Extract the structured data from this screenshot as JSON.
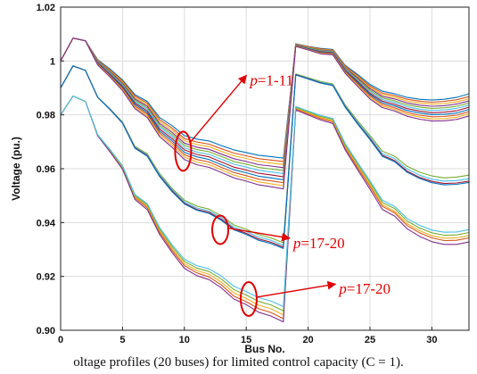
{
  "caption": "oltage profiles (20 buses) for limited control capacity (C = 1).",
  "chart_data": {
    "type": "line",
    "xlabel": "Bus No.",
    "ylabel": "Voltage (pu.)",
    "xlim": [
      0,
      33
    ],
    "ylim": [
      0.9,
      1.02
    ],
    "xticks": [
      0,
      5,
      10,
      15,
      20,
      25,
      30
    ],
    "yticks": [
      0.9,
      0.92,
      0.94,
      0.96,
      0.98,
      1,
      1.02
    ],
    "grid": true,
    "x": [
      0,
      1,
      2,
      3,
      4,
      5,
      6,
      7,
      8,
      9,
      10,
      11,
      12,
      13,
      14,
      15,
      16,
      17,
      18,
      19,
      20,
      21,
      22,
      23,
      24,
      25,
      26,
      27,
      28,
      29,
      30,
      31,
      32,
      33
    ],
    "series": [
      {
        "color": "#0072bd",
        "values": [
          1,
          1.0085,
          1.0075,
          1.0005,
          0.997,
          0.993,
          0.9875,
          0.985,
          0.979,
          0.976,
          0.9723,
          0.971,
          0.9703,
          0.9686,
          0.967,
          0.966,
          0.965,
          0.9645,
          0.9639,
          1.0064,
          1.0054,
          1.0047,
          1.0043,
          0.9984,
          0.995,
          0.9913,
          0.9888,
          0.9878,
          0.9865,
          0.9858,
          0.9855,
          0.9858,
          0.9865,
          0.9878
        ]
      },
      {
        "color": "#d95319",
        "values": [
          1,
          1.0085,
          1.0075,
          1.0003,
          0.9966,
          0.9926,
          0.987,
          0.9844,
          0.9782,
          0.9751,
          0.9712,
          0.9699,
          0.9691,
          0.9674,
          0.9658,
          0.9648,
          0.9637,
          0.9632,
          0.9627,
          1.0063,
          1.0053,
          1.0045,
          1.0041,
          0.9981,
          0.9945,
          0.9907,
          0.9881,
          0.9871,
          0.9858,
          0.9851,
          0.9847,
          0.985,
          0.9856,
          0.9868
        ]
      },
      {
        "color": "#edb120",
        "values": [
          1,
          1.0085,
          1.0075,
          1.0001,
          0.9963,
          0.9922,
          0.9864,
          0.9838,
          0.9775,
          0.9743,
          0.9704,
          0.969,
          0.9682,
          0.9664,
          0.9648,
          0.9638,
          0.9627,
          0.9621,
          0.9616,
          1.0062,
          1.0051,
          1.0043,
          1.0039,
          0.9978,
          0.9941,
          0.9902,
          0.9875,
          0.9865,
          0.9851,
          0.9844,
          0.984,
          0.9842,
          0.9848,
          0.986
        ]
      },
      {
        "color": "#7e2f8e",
        "values": [
          1,
          1.0085,
          1.0075,
          0.9999,
          0.996,
          0.9918,
          0.9859,
          0.9832,
          0.9768,
          0.9735,
          0.9695,
          0.968,
          0.9672,
          0.9654,
          0.9637,
          0.9627,
          0.9615,
          0.961,
          0.9604,
          1.0061,
          1.005,
          1.0041,
          1.0037,
          0.9975,
          0.9937,
          0.9897,
          0.9869,
          0.9859,
          0.9844,
          0.9836,
          0.9832,
          0.9834,
          0.984,
          0.9852
        ]
      },
      {
        "color": "#77ac30",
        "values": [
          1,
          1.0085,
          1.0075,
          0.9997,
          0.9957,
          0.9914,
          0.9854,
          0.9826,
          0.9761,
          0.9727,
          0.9687,
          0.9671,
          0.9663,
          0.9645,
          0.9627,
          0.9617,
          0.9605,
          0.9599,
          0.9593,
          1.006,
          1.0049,
          1.0039,
          1.0035,
          0.9972,
          0.9932,
          0.9891,
          0.9863,
          0.9852,
          0.9837,
          0.9829,
          0.9824,
          0.9826,
          0.9832,
          0.9844
        ]
      },
      {
        "color": "#4dbeee",
        "values": [
          1,
          1.0085,
          1.0075,
          0.9995,
          0.9954,
          0.991,
          0.9849,
          0.982,
          0.9754,
          0.972,
          0.9678,
          0.9662,
          0.9653,
          0.9635,
          0.9617,
          0.9606,
          0.9594,
          0.9588,
          0.9582,
          1.0059,
          1.0047,
          1.0037,
          1.0033,
          0.9969,
          0.9928,
          0.9886,
          0.9857,
          0.9846,
          0.983,
          0.9821,
          0.9816,
          0.9818,
          0.9824,
          0.9836
        ]
      },
      {
        "color": "#a2142f",
        "values": [
          1,
          1.0085,
          1.0075,
          0.9993,
          0.9951,
          0.9906,
          0.9844,
          0.9814,
          0.9747,
          0.9712,
          0.967,
          0.9653,
          0.9644,
          0.9625,
          0.9606,
          0.9595,
          0.9583,
          0.9577,
          0.957,
          1.0058,
          1.0046,
          1.0035,
          1.0031,
          0.9966,
          0.9924,
          0.988,
          0.9851,
          0.9839,
          0.9823,
          0.9814,
          0.9808,
          0.981,
          0.9815,
          0.9828
        ]
      },
      {
        "color": "#0072bd",
        "values": [
          1,
          1.0085,
          1.0075,
          0.9991,
          0.9948,
          0.9902,
          0.9839,
          0.9808,
          0.974,
          0.9704,
          0.9661,
          0.9644,
          0.9634,
          0.9615,
          0.9596,
          0.9585,
          0.9572,
          0.9566,
          0.9559,
          1.0057,
          1.0045,
          1.0033,
          1.0029,
          0.9963,
          0.9919,
          0.9875,
          0.9845,
          0.9833,
          0.9816,
          0.9807,
          0.9801,
          0.9802,
          0.9807,
          0.982
        ]
      },
      {
        "color": "#d95319",
        "values": [
          1,
          1.0085,
          1.0075,
          0.9989,
          0.9945,
          0.9898,
          0.9833,
          0.9802,
          0.9733,
          0.9696,
          0.9652,
          0.9634,
          0.9625,
          0.9605,
          0.9586,
          0.9574,
          0.9561,
          0.9555,
          0.9548,
          1.0056,
          1.0043,
          1.0031,
          1.0027,
          0.996,
          0.9915,
          0.987,
          0.9839,
          0.9826,
          0.9809,
          0.9799,
          0.9793,
          0.9794,
          0.9799,
          0.9812
        ]
      },
      {
        "color": "#edb120",
        "values": [
          1,
          1.0085,
          1.0075,
          0.9987,
          0.9942,
          0.9894,
          0.9828,
          0.9796,
          0.9726,
          0.9688,
          0.9643,
          0.9625,
          0.9615,
          0.9596,
          0.9576,
          0.9564,
          0.9551,
          0.9544,
          0.9537,
          1.0055,
          1.0042,
          1.0029,
          1.0025,
          0.9957,
          0.9911,
          0.9864,
          0.9833,
          0.982,
          0.9802,
          0.9792,
          0.9785,
          0.9786,
          0.9791,
          0.9804
        ]
      },
      {
        "color": "#7e2f8e",
        "values": [
          1,
          1.0085,
          1.0075,
          0.9985,
          0.994,
          0.989,
          0.9823,
          0.979,
          0.9719,
          0.968,
          0.9634,
          0.9615,
          0.9605,
          0.9586,
          0.9566,
          0.9554,
          0.954,
          0.9533,
          0.9525,
          1.0054,
          1.0041,
          1.0027,
          1.0023,
          0.9954,
          0.9906,
          0.9859,
          0.9827,
          0.9814,
          0.9795,
          0.9784,
          0.9777,
          0.9778,
          0.9783,
          0.9796
        ]
      },
      {
        "color": "#77ac30",
        "values": [
          0.99,
          0.9982,
          0.9965,
          0.9866,
          0.9822,
          0.9773,
          0.9683,
          0.9655,
          0.9582,
          0.9527,
          0.9483,
          0.9461,
          0.945,
          0.9425,
          0.9391,
          0.9375,
          0.9355,
          0.9343,
          0.9325,
          0.9952,
          0.9938,
          0.9924,
          0.9915,
          0.9837,
          0.9778,
          0.9723,
          0.9665,
          0.9646,
          0.9609,
          0.9587,
          0.9573,
          0.9566,
          0.9569,
          0.9576
        ]
      },
      {
        "color": "#4dbeee",
        "values": [
          0.99,
          0.9982,
          0.9965,
          0.9866,
          0.9821,
          0.9771,
          0.968,
          0.9651,
          0.9577,
          0.9522,
          0.9477,
          0.9454,
          0.9443,
          0.9418,
          0.9383,
          0.9367,
          0.9346,
          0.9334,
          0.9316,
          0.995,
          0.9936,
          0.9921,
          0.9912,
          0.9833,
          0.9772,
          0.9716,
          0.9656,
          0.9637,
          0.9599,
          0.9576,
          0.9561,
          0.9554,
          0.9556,
          0.9563
        ]
      },
      {
        "color": "#a2142f",
        "values": [
          0.99,
          0.9982,
          0.9965,
          0.9865,
          0.982,
          0.977,
          0.9678,
          0.9648,
          0.9573,
          0.9518,
          0.9472,
          0.9449,
          0.9438,
          0.9412,
          0.9377,
          0.936,
          0.9339,
          0.9327,
          0.9309,
          0.9949,
          0.9934,
          0.9919,
          0.991,
          0.983,
          0.9768,
          0.9711,
          0.965,
          0.963,
          0.9591,
          0.9568,
          0.9553,
          0.9545,
          0.9547,
          0.9554
        ]
      },
      {
        "color": "#0072bd",
        "values": [
          0.99,
          0.9982,
          0.9965,
          0.9865,
          0.9819,
          0.9769,
          0.9676,
          0.9646,
          0.9571,
          0.9515,
          0.9469,
          0.9446,
          0.9434,
          0.9408,
          0.9373,
          0.9356,
          0.9334,
          0.9322,
          0.9304,
          0.9948,
          0.9933,
          0.9918,
          0.9909,
          0.9828,
          0.9766,
          0.9708,
          0.9646,
          0.9626,
          0.9587,
          0.9564,
          0.9548,
          0.954,
          0.9542,
          0.9549
        ]
      },
      {
        "color": "#d95319",
        "values": [
          0.98,
          0.987,
          0.985,
          0.9723,
          0.9665,
          0.9602,
          0.9492,
          0.9455,
          0.9364,
          0.9297,
          0.924,
          0.9213,
          0.9198,
          0.9168,
          0.9127,
          0.9106,
          0.908,
          0.9066,
          0.9043,
          0.9822,
          0.9804,
          0.9786,
          0.9774,
          0.9677,
          0.9604,
          0.9534,
          0.946,
          0.9436,
          0.9389,
          0.9362,
          0.9343,
          0.9333,
          0.9334,
          0.9343
        ]
      },
      {
        "color": "#edb120",
        "values": [
          0.98,
          0.987,
          0.985,
          0.9724,
          0.9667,
          0.9605,
          0.9496,
          0.946,
          0.937,
          0.9304,
          0.9248,
          0.9222,
          0.9208,
          0.9179,
          0.9139,
          0.9118,
          0.9093,
          0.908,
          0.9057,
          0.9825,
          0.9807,
          0.979,
          0.9778,
          0.9682,
          0.961,
          0.954,
          0.9466,
          0.9442,
          0.9396,
          0.937,
          0.9351,
          0.9342,
          0.9343,
          0.9352
        ]
      },
      {
        "color": "#7e2f8e",
        "values": [
          0.98,
          0.987,
          0.985,
          0.9722,
          0.9662,
          0.9598,
          0.9486,
          0.9448,
          0.9356,
          0.9289,
          0.923,
          0.9203,
          0.9188,
          0.9157,
          0.9116,
          0.9095,
          0.9067,
          0.9053,
          0.9031,
          0.9818,
          0.98,
          0.9781,
          0.9768,
          0.967,
          0.9596,
          0.9524,
          0.9449,
          0.9424,
          0.9377,
          0.9349,
          0.9329,
          0.9319,
          0.9319,
          0.9328
        ]
      },
      {
        "color": "#77ac30",
        "values": [
          0.98,
          0.987,
          0.985,
          0.9725,
          0.9669,
          0.9608,
          0.95,
          0.9465,
          0.9376,
          0.9311,
          0.9256,
          0.9231,
          0.9218,
          0.919,
          0.9151,
          0.9131,
          0.9107,
          0.9094,
          0.9072,
          0.9828,
          0.9811,
          0.9794,
          0.9783,
          0.9688,
          0.9617,
          0.9548,
          0.9475,
          0.9452,
          0.9406,
          0.938,
          0.9362,
          0.9353,
          0.9354,
          0.9363
        ]
      },
      {
        "color": "#4dbeee",
        "values": [
          0.98,
          0.987,
          0.985,
          0.9726,
          0.9671,
          0.9611,
          0.9504,
          0.947,
          0.9382,
          0.9318,
          0.9264,
          0.924,
          0.9228,
          0.9201,
          0.9163,
          0.9144,
          0.9121,
          0.9109,
          0.9088,
          0.9831,
          0.9814,
          0.9798,
          0.9787,
          0.9693,
          0.9623,
          0.9555,
          0.9483,
          0.946,
          0.9415,
          0.939,
          0.9372,
          0.9364,
          0.9365,
          0.9374
        ]
      }
    ],
    "annotations": [
      {
        "prefix": "p",
        "text": "=1-11",
        "at_x": 9.9,
        "at_y": 0.9665,
        "label_x": 15.3,
        "label_y": 0.993
      },
      {
        "prefix": "p",
        "text": "=17-20",
        "at_x": 12.9,
        "at_y": 0.9373,
        "label_x": 18.8,
        "label_y": 0.9325
      },
      {
        "prefix": "p",
        "text": "=17-20",
        "at_x": 15.2,
        "at_y": 0.9116,
        "label_x": 22.5,
        "label_y": 0.9155
      }
    ]
  }
}
